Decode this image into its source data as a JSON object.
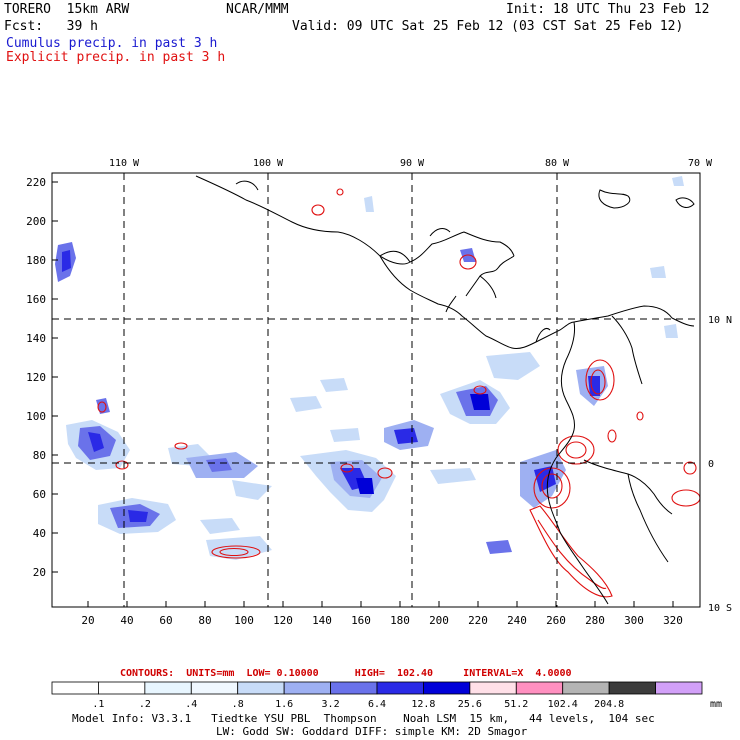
{
  "header": {
    "model": "TORERO  15km ARW",
    "center": "NCAR/MMM",
    "init": "Init: 18 UTC Thu 23 Feb 12",
    "fcst": "Fcst:   39 h",
    "valid": "Valid: 09 UTC Sat 25 Feb 12 (03 CST Sat 25 Feb 12)",
    "field1": "Cumulus precip. in past 3 h",
    "field2": "Explicit precip. in past 3 h"
  },
  "axes": {
    "top_labels": [
      "110 W",
      "100 W",
      "90 W",
      "80 W",
      "70 W"
    ],
    "right_labels": [
      "10 N",
      "0",
      "10 S"
    ],
    "left_ticks": [
      "20",
      "40",
      "60",
      "80",
      "100",
      "120",
      "140",
      "160",
      "180",
      "200",
      "220"
    ],
    "bottom_ticks": [
      "20",
      "40",
      "60",
      "80",
      "100",
      "120",
      "140",
      "160",
      "180",
      "200",
      "220",
      "240",
      "260",
      "280",
      "300",
      "320"
    ]
  },
  "contours": {
    "caption": "CONTOURS:  UNITS=mm  LOW= 0.10000      HIGH=  102.40     INTERVAL=X  4.0000"
  },
  "colorbar": {
    "labels": [
      ".1",
      ".2",
      ".4",
      ".8",
      "1.6",
      "3.2",
      "6.4",
      "12.8",
      "25.6",
      "51.2",
      "102.4",
      "204.8"
    ],
    "unit": "mm",
    "colors": [
      "#ffffff",
      "#ffffff",
      "#e8f6ff",
      "#f0f8ff",
      "#c8dcf8",
      "#9eb0f2",
      "#6a72ea",
      "#2a2ae6",
      "#0000d8",
      "#ffe0e8",
      "#ff90c0",
      "#b4b4b4",
      "#3c3c3c",
      "#d2a0f8"
    ]
  },
  "footer": {
    "line1": "Model Info: V3.3.1   Tiedtke YSU PBL  Thompson    Noah LSM  15 km,   44 levels,  104 sec",
    "line2": "LW: Godd SW: Goddard DIFF: simple KM: 2D Smagor"
  },
  "colors": {
    "cumulus": "#1a1ad0",
    "explicit": "#e01010"
  }
}
